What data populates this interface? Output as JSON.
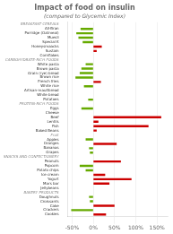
{
  "chart_data": {
    "type": "bar",
    "orientation": "horizontal",
    "title": "Impact of food on insulin",
    "subtitle": "(compared to Glycemic Index)",
    "categories": [
      "BREAKFAST CEREALS",
      "All-Bran",
      "Porridge (Oatmeal)",
      "Muesli",
      "Special K",
      "Honeysmaacks",
      "Sustain",
      "Cornflakes",
      "CARBOHYDRATE-RICH FOODS",
      "White pasta",
      "Brown pasta",
      "Grain (rye) bread",
      "Brown rice",
      "French fries",
      "White rice",
      "Artisan-maultbread",
      "White bread",
      "Potatoes",
      "PROTEIN-RICH FOODS",
      "Eggs",
      "Cheese",
      "Beef",
      "Lentils",
      "Fish",
      "Baked Beans",
      "Fruit",
      "Apples",
      "Oranges",
      "Bananas",
      "Grapes",
      "SNACKS AND CONFECTIONERY",
      "Peanuts",
      "Popcorn",
      "Potato chips",
      "Ice cream",
      "Yogurt",
      "Mars bar",
      "Jellybeans",
      "BAKERY PRODUCTS",
      "Doughnuts",
      "Croissants",
      "Cake",
      "Crackers",
      "Cookies"
    ],
    "values": [
      null,
      -30,
      -40,
      -35,
      -25,
      20,
      8,
      0,
      null,
      -18,
      -28,
      -32,
      -42,
      18,
      -22,
      0,
      0,
      -12,
      null,
      -28,
      0,
      160,
      12,
      130,
      8,
      null,
      -18,
      55,
      -10,
      -8,
      null,
      65,
      -32,
      -18,
      28,
      90,
      38,
      0,
      null,
      -10,
      -8,
      50,
      -52,
      30
    ],
    "colors": [
      null,
      "#66aa00",
      "#66aa00",
      "#66aa00",
      "#66aa00",
      "#cc0000",
      "#cc0000",
      "#cc0000",
      null,
      "#66aa00",
      "#66aa00",
      "#66aa00",
      "#66aa00",
      "#cc0000",
      "#66aa00",
      "#cc0000",
      "#cc0000",
      "#66aa00",
      null,
      "#66aa00",
      "#cc0000",
      "#cc0000",
      "#cc0000",
      "#cc0000",
      "#cc0000",
      null,
      "#66aa00",
      "#cc0000",
      "#66aa00",
      "#66aa00",
      null,
      "#cc0000",
      "#66aa00",
      "#66aa00",
      "#cc0000",
      "#cc0000",
      "#cc0000",
      "#cc0000",
      null,
      "#66aa00",
      "#66aa00",
      "#cc0000",
      "#66aa00",
      "#cc0000"
    ],
    "xlim": [
      -60,
      175
    ],
    "xticks": [
      {
        "value": -50,
        "label": "-50%"
      },
      {
        "value": 0,
        "label": "0%"
      },
      {
        "value": 50,
        "label": "50%"
      },
      {
        "value": 100,
        "label": "100%"
      },
      {
        "value": 150,
        "label": "150%"
      }
    ],
    "grid": true
  }
}
